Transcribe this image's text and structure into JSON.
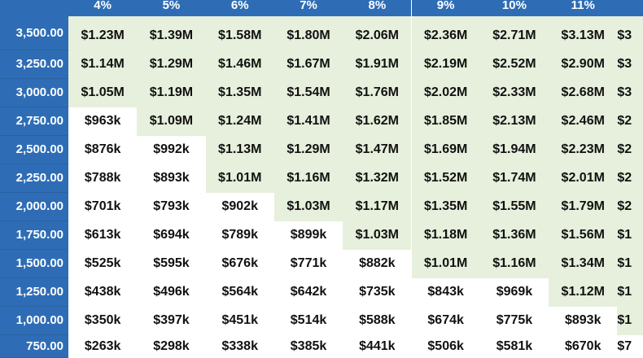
{
  "columns": [
    "4%",
    "5%",
    "6%",
    "7%",
    "8%",
    "9%",
    "10%",
    "11%",
    ""
  ],
  "rows": [
    {
      "label": "3,500.00",
      "cells": [
        "$1.23M",
        "$1.39M",
        "$1.58M",
        "$1.80M",
        "$2.06M",
        "$2.36M",
        "$2.71M",
        "$3.13M",
        "$3"
      ],
      "highlight_from": 0
    },
    {
      "label": "3,250.00",
      "cells": [
        "$1.14M",
        "$1.29M",
        "$1.46M",
        "$1.67M",
        "$1.91M",
        "$2.19M",
        "$2.52M",
        "$2.90M",
        "$3"
      ],
      "highlight_from": 0
    },
    {
      "label": "3,000.00",
      "cells": [
        "$1.05M",
        "$1.19M",
        "$1.35M",
        "$1.54M",
        "$1.76M",
        "$2.02M",
        "$2.33M",
        "$2.68M",
        "$3"
      ],
      "highlight_from": 0
    },
    {
      "label": "2,750.00",
      "cells": [
        "$963k",
        "$1.09M",
        "$1.24M",
        "$1.41M",
        "$1.62M",
        "$1.85M",
        "$2.13M",
        "$2.46M",
        "$2"
      ],
      "highlight_from": 1
    },
    {
      "label": "2,500.00",
      "cells": [
        "$876k",
        "$992k",
        "$1.13M",
        "$1.29M",
        "$1.47M",
        "$1.69M",
        "$1.94M",
        "$2.23M",
        "$2"
      ],
      "highlight_from": 2
    },
    {
      "label": "2,250.00",
      "cells": [
        "$788k",
        "$893k",
        "$1.01M",
        "$1.16M",
        "$1.32M",
        "$1.52M",
        "$1.74M",
        "$2.01M",
        "$2"
      ],
      "highlight_from": 2
    },
    {
      "label": "2,000.00",
      "cells": [
        "$701k",
        "$793k",
        "$902k",
        "$1.03M",
        "$1.17M",
        "$1.35M",
        "$1.55M",
        "$1.79M",
        "$2"
      ],
      "highlight_from": 3
    },
    {
      "label": "1,750.00",
      "cells": [
        "$613k",
        "$694k",
        "$789k",
        "$899k",
        "$1.03M",
        "$1.18M",
        "$1.36M",
        "$1.56M",
        "$1"
      ],
      "highlight_from": 4
    },
    {
      "label": "1,500.00",
      "cells": [
        "$525k",
        "$595k",
        "$676k",
        "$771k",
        "$882k",
        "$1.01M",
        "$1.16M",
        "$1.34M",
        "$1"
      ],
      "highlight_from": 5
    },
    {
      "label": "1,250.00",
      "cells": [
        "$438k",
        "$496k",
        "$564k",
        "$642k",
        "$735k",
        "$843k",
        "$969k",
        "$1.12M",
        "$1"
      ],
      "highlight_from": 7
    },
    {
      "label": "1,000.00",
      "cells": [
        "$350k",
        "$397k",
        "$451k",
        "$514k",
        "$588k",
        "$674k",
        "$775k",
        "$893k",
        "$1"
      ],
      "highlight_from": 8
    },
    {
      "label": "750.00",
      "cells": [
        "$263k",
        "$298k",
        "$338k",
        "$385k",
        "$441k",
        "$506k",
        "$581k",
        "$670k",
        "$7"
      ],
      "highlight_from": 9
    }
  ],
  "colors": {
    "header_bg": "#2e6db5",
    "highlight_bg": "#e6f0dc",
    "cell_text": "#111111"
  }
}
